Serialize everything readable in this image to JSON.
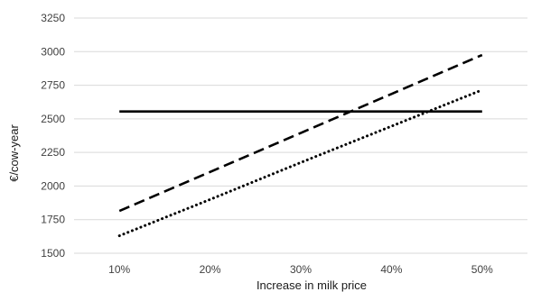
{
  "chart_data": {
    "type": "line",
    "xlabel": "Increase in milk price",
    "ylabel": "€/cow-year",
    "x": [
      "10%",
      "20%",
      "30%",
      "40%",
      "50%"
    ],
    "x_values": [
      10,
      20,
      30,
      40,
      50
    ],
    "ylim": [
      1500,
      3250
    ],
    "yticks": [
      1500,
      1750,
      2000,
      2250,
      2500,
      2750,
      3000,
      3250
    ],
    "ytick_labels": [
      "1500",
      "1750",
      "2000",
      "2250",
      "2500",
      "2750",
      "3000",
      "3250"
    ],
    "grid": "horizontal",
    "series": [
      {
        "style": "solid",
        "color": "#000000",
        "values": [
          2555,
          2555,
          2555,
          2555,
          2555
        ]
      },
      {
        "style": "dashed",
        "color": "#000000",
        "values": [
          1815,
          2105,
          2395,
          2685,
          2975
        ]
      },
      {
        "style": "dotted",
        "color": "#000000",
        "values": [
          1630,
          1900,
          2175,
          2445,
          2715
        ]
      }
    ]
  }
}
